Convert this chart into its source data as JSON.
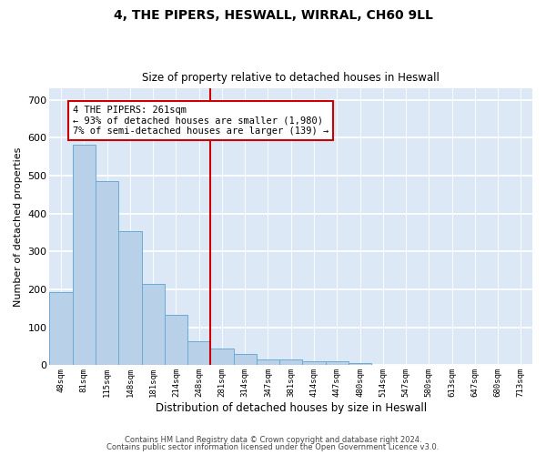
{
  "title1": "4, THE PIPERS, HESWALL, WIRRAL, CH60 9LL",
  "title2": "Size of property relative to detached houses in Heswall",
  "xlabel": "Distribution of detached houses by size in Heswall",
  "ylabel": "Number of detached properties",
  "bar_color": "#b8d0e8",
  "bar_edge_color": "#6aaad4",
  "background_color": "#dce8f5",
  "grid_color": "#ffffff",
  "fig_background": "#ffffff",
  "categories": [
    "48sqm",
    "81sqm",
    "115sqm",
    "148sqm",
    "181sqm",
    "214sqm",
    "248sqm",
    "281sqm",
    "314sqm",
    "347sqm",
    "381sqm",
    "414sqm",
    "447sqm",
    "480sqm",
    "514sqm",
    "547sqm",
    "580sqm",
    "613sqm",
    "647sqm",
    "680sqm",
    "713sqm"
  ],
  "values": [
    192,
    582,
    485,
    355,
    215,
    132,
    63,
    44,
    30,
    15,
    15,
    10,
    10,
    7,
    0,
    0,
    0,
    0,
    0,
    0,
    0
  ],
  "ylim": [
    0,
    730
  ],
  "yticks": [
    0,
    100,
    200,
    300,
    400,
    500,
    600,
    700
  ],
  "vline_x": 6.5,
  "annotation_text": "4 THE PIPERS: 261sqm\n← 93% of detached houses are smaller (1,980)\n7% of semi-detached houses are larger (139) →",
  "annotation_box_color": "#ffffff",
  "annotation_border_color": "#cc0000",
  "vline_color": "#cc0000",
  "footer1": "Contains HM Land Registry data © Crown copyright and database right 2024.",
  "footer2": "Contains public sector information licensed under the Open Government Licence v3.0."
}
